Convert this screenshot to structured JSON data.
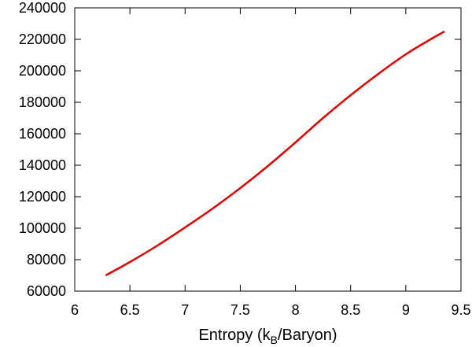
{
  "chart_data": {
    "type": "line",
    "title": "",
    "xlabel": "Entropy (k",
    "xlabel_sub": "B",
    "xlabel_tail": "/Baryon)",
    "ylabel": "",
    "xlim": [
      6,
      9.5
    ],
    "ylim": [
      60000,
      240000
    ],
    "x_ticks": [
      "6",
      "6.5",
      "7",
      "7.5",
      "8",
      "8.5",
      "9",
      "9.5"
    ],
    "y_ticks": [
      "60000",
      "80000",
      "100000",
      "120000",
      "140000",
      "160000",
      "180000",
      "200000",
      "220000",
      "240000"
    ],
    "grid": false,
    "series": [
      {
        "color": "#e00000",
        "x": [
          6.28,
          6.5,
          6.75,
          7.0,
          7.25,
          7.5,
          7.75,
          8.0,
          8.25,
          8.5,
          8.75,
          9.0,
          9.2,
          9.35
        ],
        "y": [
          70000,
          78500,
          89000,
          100500,
          112500,
          125500,
          139500,
          154500,
          170000,
          184500,
          198000,
          210500,
          219000,
          225000
        ]
      }
    ]
  }
}
